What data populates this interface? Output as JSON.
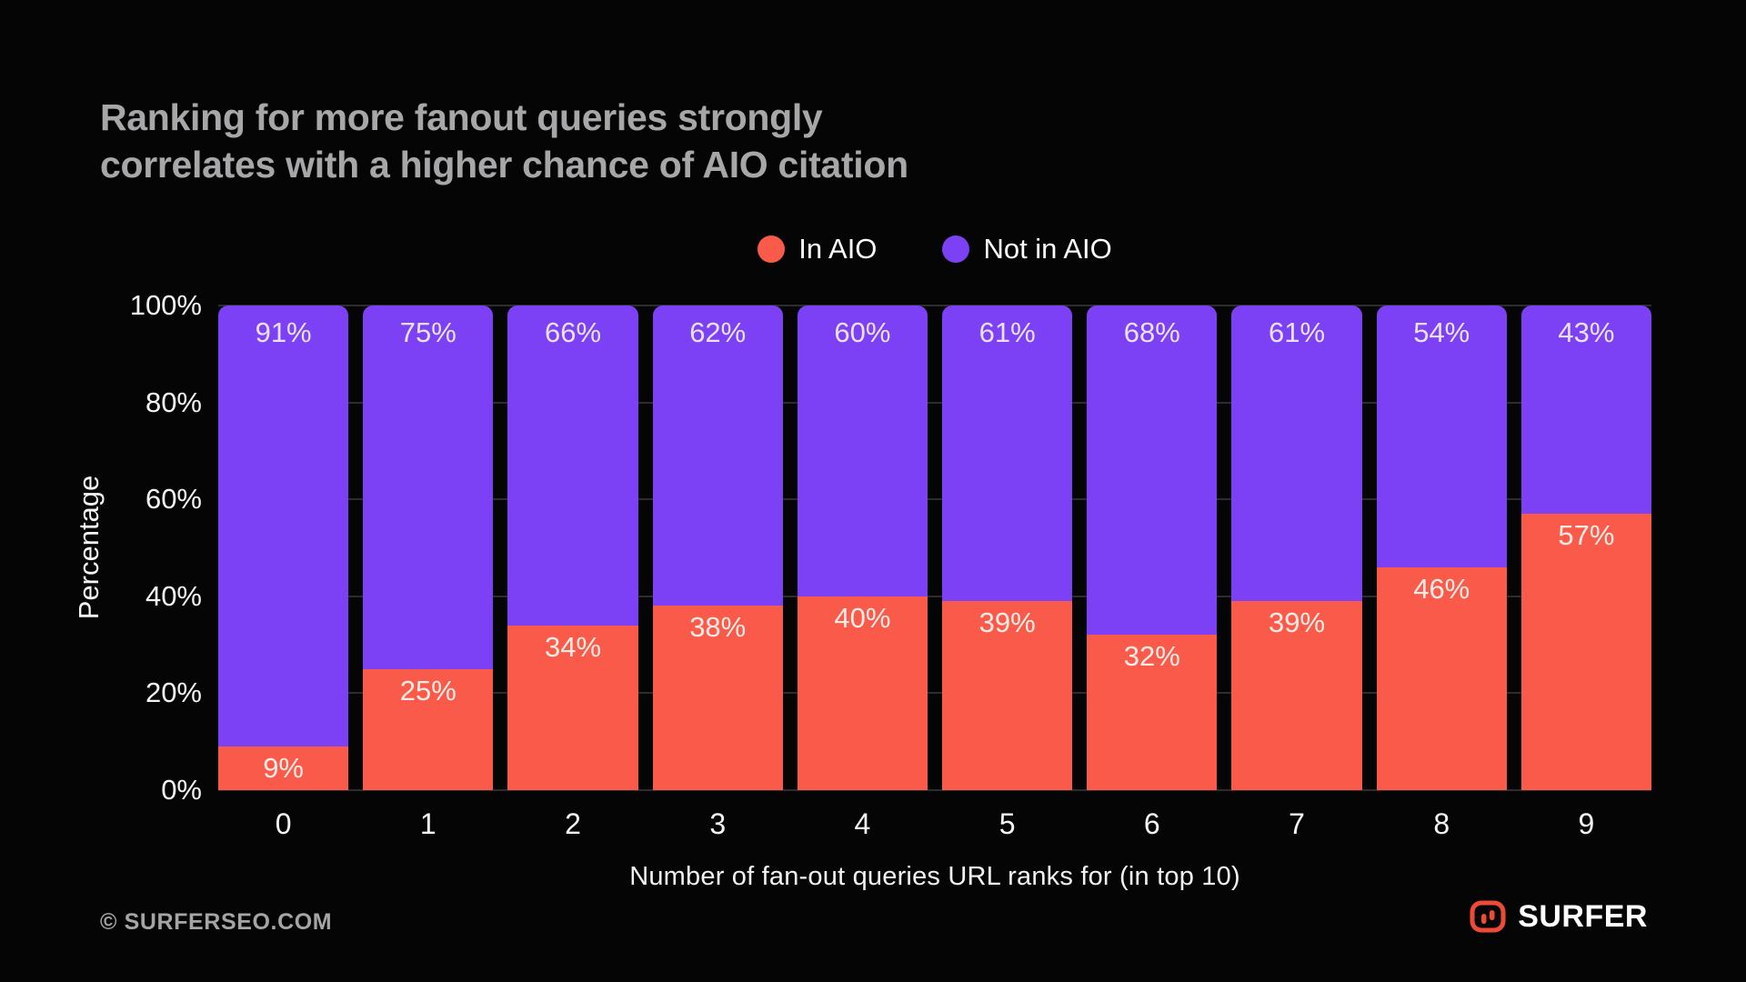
{
  "title": {
    "line1": "Ranking for more fanout queries strongly",
    "line2": "correlates with a higher chance of AIO citation"
  },
  "legend": [
    {
      "label": "In AIO",
      "color": "#FA5A49"
    },
    {
      "label": "Not in AIO",
      "color": "#7C40F5"
    }
  ],
  "chart_data": {
    "type": "bar",
    "stacked": true,
    "categories": [
      "0",
      "1",
      "2",
      "3",
      "4",
      "5",
      "6",
      "7",
      "8",
      "9"
    ],
    "series": [
      {
        "name": "In AIO",
        "color": "#FA5A49",
        "values": [
          9,
          25,
          34,
          38,
          40,
          39,
          32,
          39,
          46,
          57
        ]
      },
      {
        "name": "Not in AIO",
        "color": "#7C40F5",
        "values": [
          91,
          75,
          66,
          62,
          60,
          61,
          68,
          61,
          54,
          43
        ]
      }
    ],
    "value_label_format": "percent",
    "title": "Ranking for more fanout queries strongly correlates with a higher chance of AIO citation",
    "xlabel": "Number of fan-out queries URL ranks for (in top 10)",
    "ylabel": "Percentage",
    "yticks": [
      "0%",
      "20%",
      "40%",
      "60%",
      "80%",
      "100%"
    ],
    "ytick_values": [
      0,
      20,
      40,
      60,
      80,
      100
    ],
    "ylim": [
      0,
      100
    ],
    "grid": true,
    "legend_position": "top"
  },
  "footer": {
    "copyright": "© SURFERSEO.COM",
    "brand": "SURFER"
  },
  "colors": {
    "background": "#050505",
    "in_aio": "#FA5A49",
    "not_in_aio": "#7C40F5",
    "title_text": "#a7a7a9",
    "axis_text": "#f4f4f4",
    "grid_line": "#2c2c2e",
    "logo_red": "#EF4A33"
  }
}
